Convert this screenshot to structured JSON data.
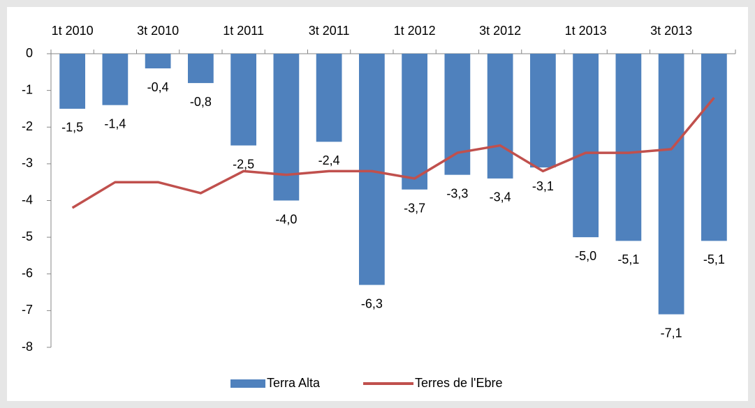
{
  "chart_data": {
    "type": "bar",
    "categories": [
      "1t 2010",
      null,
      "3t 2010",
      null,
      "1t 2011",
      null,
      "3t 2011",
      null,
      "1t 2012",
      null,
      "3t 2012",
      null,
      "1t 2013",
      null,
      "3t 2013",
      null
    ],
    "series": [
      {
        "name": "Terra Alta",
        "type": "bar",
        "color": "#4f81bd",
        "values": [
          -1.5,
          -1.4,
          -0.4,
          -0.8,
          -2.5,
          -4.0,
          -2.4,
          -6.3,
          -3.7,
          -3.3,
          -3.4,
          -3.1,
          -5.0,
          -5.1,
          -7.1,
          -5.1
        ],
        "value_labels": [
          "-1,5",
          "-1,4",
          "-0,4",
          "-0,8",
          "-2,5",
          "-4,0",
          "-2,4",
          "-6,3",
          "-3,7",
          "-3,3",
          "-3,4",
          "-3,1",
          "-5,0",
          "-5,1",
          "-7,1",
          "-5,1"
        ]
      },
      {
        "name": "Terres de l'Ebre",
        "type": "line",
        "color": "#c0504d",
        "values": [
          -4.2,
          -3.5,
          -3.5,
          -3.8,
          -3.2,
          -3.3,
          -3.2,
          -3.2,
          -3.4,
          -2.7,
          -2.5,
          -3.2,
          -2.7,
          -2.7,
          -2.6,
          -1.2
        ]
      }
    ],
    "ylim": [
      -8,
      0
    ],
    "yticks": [
      0,
      -1,
      -2,
      -3,
      -4,
      -5,
      -6,
      -7,
      -8
    ],
    "legend": "bottom"
  }
}
